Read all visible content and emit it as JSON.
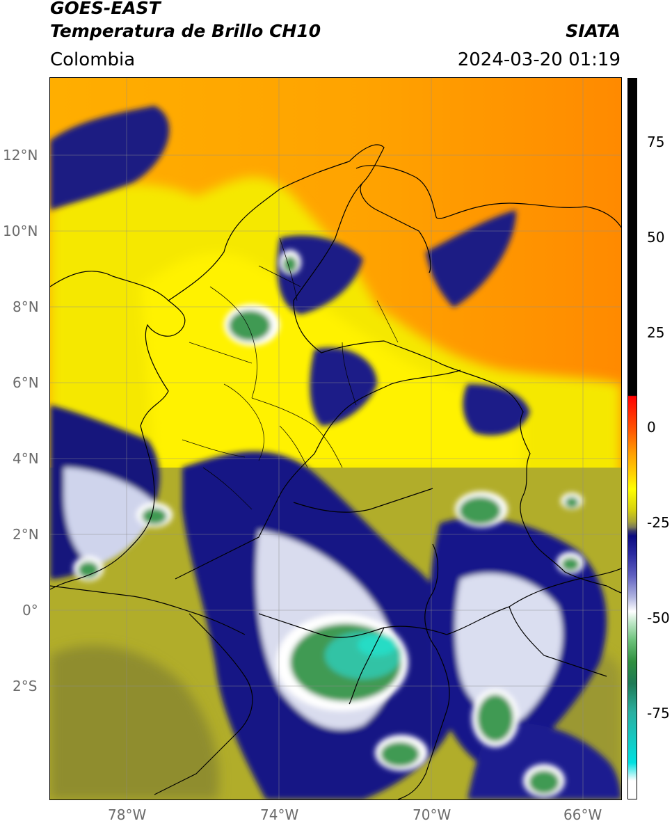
{
  "header": {
    "title_line1": "GOES-EAST",
    "title_line2": "Temperatura de Brillo CH10",
    "brand": "SIATA",
    "region": "Colombia",
    "datetime": "2024-03-20 01:19"
  },
  "axes": {
    "lat_labels": [
      "12°N",
      "10°N",
      "8°N",
      "6°N",
      "4°N",
      "2°N",
      "0°",
      "2°S"
    ],
    "lon_labels": [
      "78°W",
      "74°W",
      "70°W",
      "66°W"
    ]
  },
  "colorbar": {
    "tick_labels": [
      "75",
      "50",
      "25",
      "0",
      "-25",
      "-50",
      "-75"
    ],
    "colors": {
      "warm_black": "#000000",
      "red": "#ff2000",
      "orange": "#ff8c00",
      "yellow": "#ffff00",
      "olive": "#8a8a2a",
      "navy": "#0a0a80",
      "white": "#ffffff",
      "green": "#2f8f3f",
      "cyan": "#00e0e0"
    }
  },
  "colors": {
    "ocean_orange": "#ff9800",
    "land_yellow": "#f6ea00",
    "olive_amazon": "#a9a62a",
    "cloud_navy": "#12127e",
    "cloud_white": "#e9ecf5",
    "cold_green": "#3f9a52",
    "very_cold_teal": "#30c6a8",
    "border_line": "#000000",
    "grid": "#9a9a9a"
  }
}
